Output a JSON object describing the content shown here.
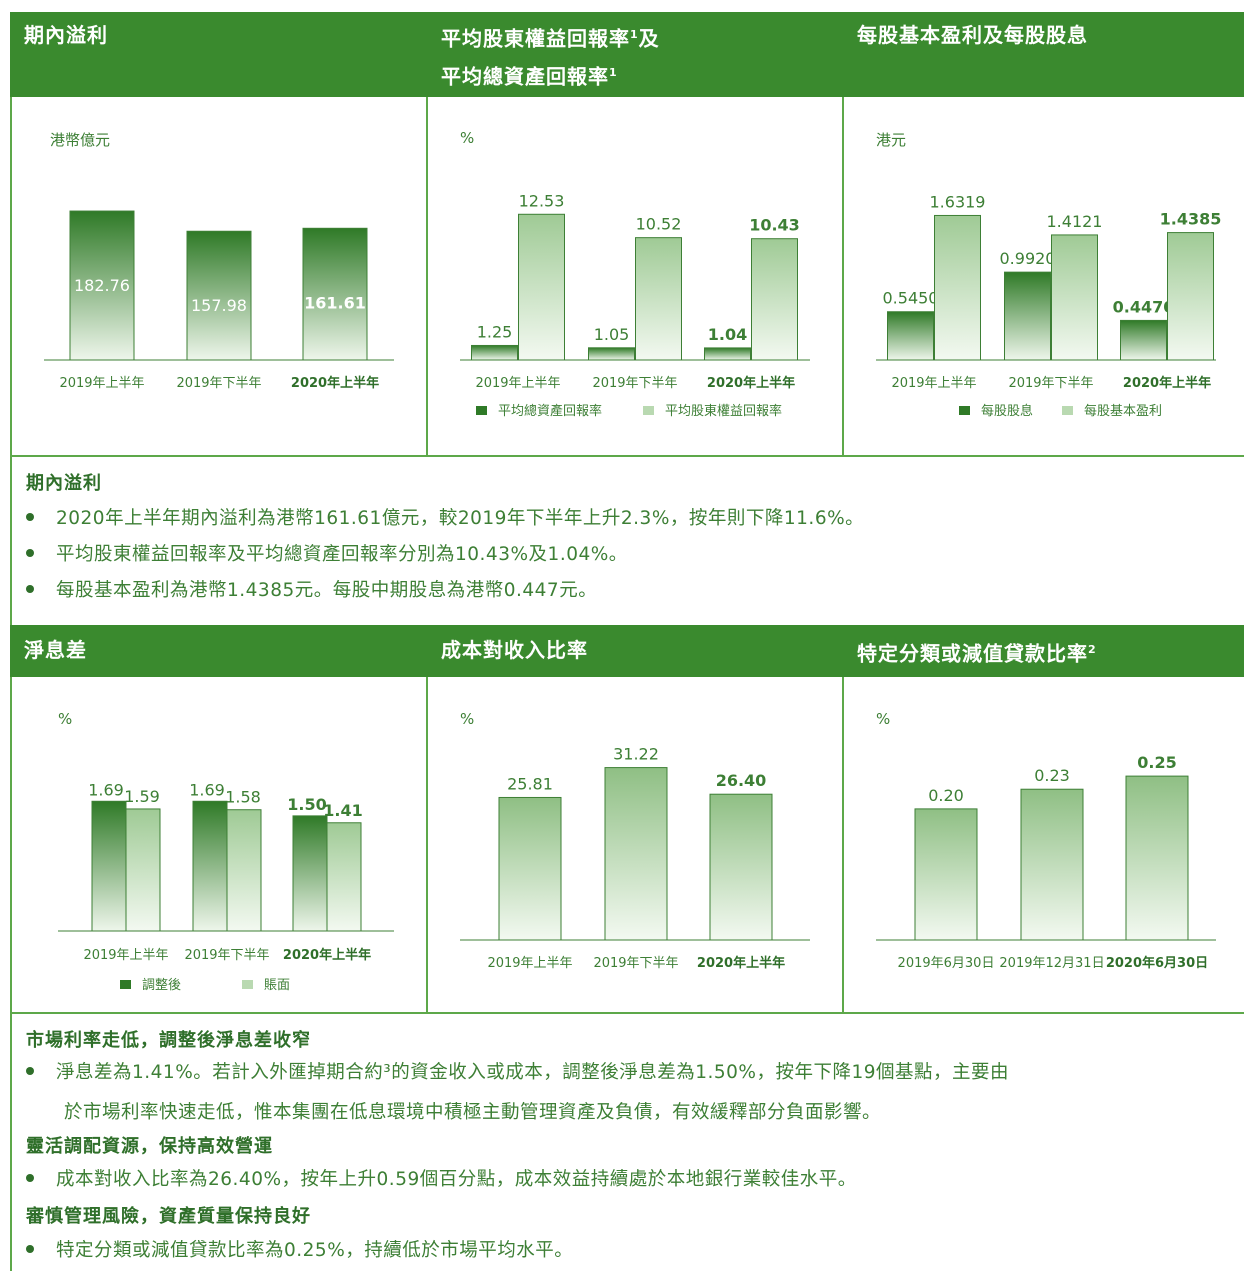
{
  "row1": {
    "headers": [
      {
        "line1": "期內溢利",
        "line2": ""
      },
      {
        "line1": "平均股東權益回報率",
        "sup1": "1",
        "line1b": "及",
        "line2": "平均總資產回報率",
        "sup2": "1"
      },
      {
        "line1": "每股基本盈利及每股股息",
        "line2": ""
      }
    ]
  },
  "row2": {
    "headers": [
      {
        "text": "淨息差"
      },
      {
        "text": "成本對收入比率"
      },
      {
        "text": "特定分類或減值貸款比率",
        "sup": "2"
      }
    ]
  },
  "colors": {
    "dark_green": "#2f7a27",
    "light_green": "#a9cfa0",
    "header_bg": "#3a8a2e",
    "text_green": "#3d7f35"
  },
  "chart_data": [
    {
      "type": "bar",
      "unit": "港幣億元",
      "categories": [
        "2019年上半年",
        "2019年下半年",
        "2020年上半年"
      ],
      "series": [
        {
          "values": [
            182.76,
            157.98,
            161.61
          ],
          "labels": [
            "182.76",
            "157.98",
            "161.61"
          ]
        }
      ],
      "highlight_last": true
    },
    {
      "type": "bar",
      "unit": "%",
      "categories": [
        "2019年上半年",
        "2019年下半年",
        "2020年上半年"
      ],
      "series": [
        {
          "name": "平均總資產回報率",
          "values": [
            1.25,
            1.05,
            1.04
          ],
          "labels": [
            "1.25",
            "1.05",
            "1.04"
          ]
        },
        {
          "name": "平均股東權益回報率",
          "values": [
            12.53,
            10.52,
            10.43
          ],
          "labels": [
            "12.53",
            "10.52",
            "10.43"
          ]
        }
      ],
      "highlight_last": true
    },
    {
      "type": "bar",
      "unit": "港元",
      "categories": [
        "2019年上半年",
        "2019年下半年",
        "2020年上半年"
      ],
      "series": [
        {
          "name": "每股股息",
          "values": [
            0.545,
            0.992,
            0.447
          ],
          "labels": [
            "0.5450",
            "0.9920",
            "0.4470"
          ]
        },
        {
          "name": "每股基本盈利",
          "values": [
            1.6319,
            1.4121,
            1.4385
          ],
          "labels": [
            "1.6319",
            "1.4121",
            "1.4385"
          ]
        }
      ],
      "highlight_last": true
    },
    {
      "type": "bar",
      "unit": "%",
      "categories": [
        "2019年上半年",
        "2019年下半年",
        "2020年上半年"
      ],
      "series": [
        {
          "name": "調整後",
          "values": [
            1.69,
            1.69,
            1.5
          ],
          "labels": [
            "1.69",
            "1.69",
            "1.50"
          ]
        },
        {
          "name": "賬面",
          "values": [
            1.59,
            1.58,
            1.41
          ],
          "labels": [
            "1.59",
            "1.58",
            "1.41"
          ]
        }
      ],
      "highlight_last": true
    },
    {
      "type": "bar",
      "unit": "%",
      "categories": [
        "2019年上半年",
        "2019年下半年",
        "2020年上半年"
      ],
      "series": [
        {
          "values": [
            25.81,
            31.22,
            26.4
          ],
          "labels": [
            "25.81",
            "31.22",
            "26.40"
          ]
        }
      ],
      "highlight_last": true
    },
    {
      "type": "bar",
      "unit": "%",
      "categories": [
        "2019年6月30日",
        "2019年12月31日",
        "2020年6月30日"
      ],
      "series": [
        {
          "values": [
            0.2,
            0.23,
            0.25
          ],
          "labels": [
            "0.20",
            "0.23",
            "0.25"
          ]
        }
      ],
      "highlight_last": true
    }
  ],
  "text1": {
    "title": "期內溢利",
    "bullets": [
      "2020年上半年期內溢利為港幣161.61億元，較2019年下半年上升2.3%，按年則下降11.6%。",
      "平均股東權益回報率及平均總資產回報率分別為10.43%及1.04%。",
      "每股基本盈利為港幣1.4385元。每股中期股息為港幣0.447元。"
    ]
  },
  "text2": {
    "title1": "市場利率走低，調整後淨息差收窄",
    "b1a": "淨息差為1.41%。若計入外匯掉期合約³的資金收入或成本，調整後淨息差為1.50%，按年下降19個基點，主要由",
    "b1b": "於市場利率快速走低，惟本集團在低息環境中積極主動管理資產及負債，有效緩釋部分負面影響。",
    "title2": "靈活調配資源，保持高效營運",
    "b2": "成本對收入比率為26.40%，按年上升0.59個百分點，成本效益持續處於本地銀行業較佳水平。",
    "title3": "審慎管理風險，資產質量保持良好",
    "b3": "特定分類或減值貸款比率為0.25%，持續低於市場平均水平。"
  }
}
